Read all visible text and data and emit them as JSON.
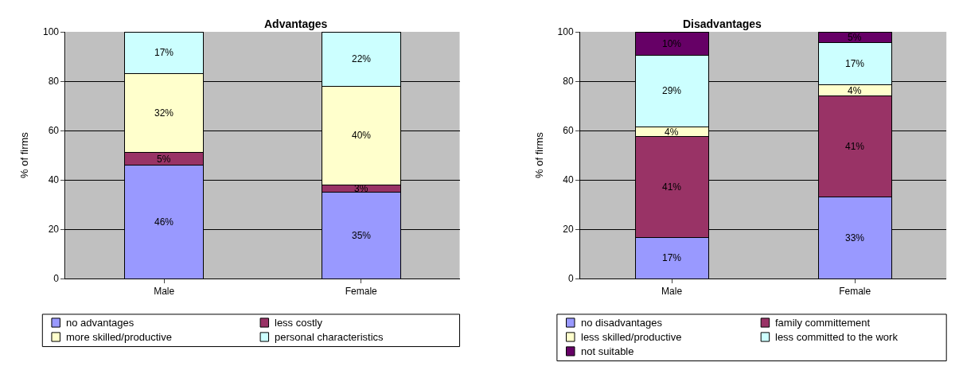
{
  "chart_data": [
    {
      "type": "bar",
      "title": "Advantages",
      "ylabel": "% of firms",
      "stacked": true,
      "categories": [
        "Male",
        "Female"
      ],
      "ylim": [
        0,
        100
      ],
      "yticks": [
        0,
        20,
        40,
        60,
        80,
        100
      ],
      "grid": "y",
      "legend": "bottom",
      "series": [
        {
          "name": "no advantages",
          "color": "#9999ff",
          "values": [
            46,
            35
          ],
          "value_labels": [
            "46%",
            "35%"
          ]
        },
        {
          "name": "less costly",
          "color": "#993366",
          "values": [
            5,
            3
          ],
          "value_labels": [
            "5%",
            "3%"
          ]
        },
        {
          "name": "more skilled/productive",
          "color": "#ffffcc",
          "values": [
            32,
            40
          ],
          "value_labels": [
            "32%",
            "40%"
          ]
        },
        {
          "name": "personal characteristics",
          "color": "#ccffff",
          "values": [
            17,
            22
          ],
          "value_labels": [
            "17%",
            "22%"
          ]
        }
      ]
    },
    {
      "type": "bar",
      "title": "Disadvantages",
      "ylabel": "% of firms",
      "stacked": true,
      "categories": [
        "Male",
        "Female"
      ],
      "ylim": [
        0,
        100
      ],
      "yticks": [
        0,
        20,
        40,
        60,
        80,
        100
      ],
      "grid": "y",
      "legend": "bottom",
      "series": [
        {
          "name": "no disadvantages",
          "color": "#9999ff",
          "values": [
            16.5,
            33
          ],
          "value_labels": [
            "17%",
            "33%"
          ]
        },
        {
          "name": "family committement",
          "color": "#993366",
          "values": [
            41,
            41
          ],
          "value_labels": [
            "41%",
            "41%"
          ]
        },
        {
          "name": "less skilled/productive",
          "color": "#ffffcc",
          "values": [
            4,
            4.5
          ],
          "value_labels": [
            "4%",
            "4%"
          ]
        },
        {
          "name": "less committed to the work",
          "color": "#ccffff",
          "values": [
            29,
            17
          ],
          "value_labels": [
            "29%",
            "17%"
          ]
        },
        {
          "name": "not suitable",
          "color": "#660066",
          "values": [
            9.5,
            4.5
          ],
          "value_labels": [
            "10%",
            "5%"
          ]
        }
      ]
    }
  ]
}
